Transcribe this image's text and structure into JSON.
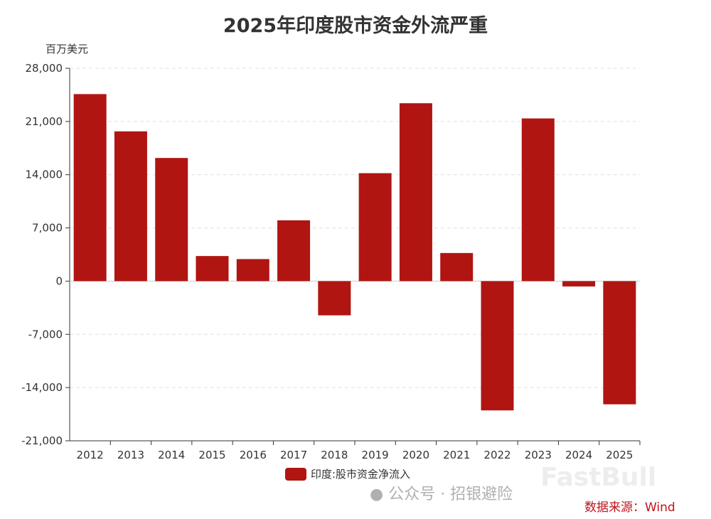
{
  "chart_data": {
    "type": "bar",
    "title": "2025年印度股市资金外流严重",
    "ylabel": "百万美元",
    "xlabel": "",
    "categories": [
      "2012",
      "2013",
      "2014",
      "2015",
      "2016",
      "2017",
      "2018",
      "2019",
      "2020",
      "2021",
      "2022",
      "2023",
      "2024",
      "2025"
    ],
    "series": [
      {
        "name": "印度:股市资金净流入",
        "values": [
          24600,
          19700,
          16200,
          3300,
          2900,
          8000,
          -4500,
          14200,
          23400,
          3700,
          -17000,
          21400,
          -700,
          -16200
        ]
      }
    ],
    "ylim": [
      -21000,
      28000
    ],
    "yticks": [
      -21000,
      -14000,
      -7000,
      0,
      7000,
      14000,
      21000,
      28000
    ],
    "ytick_labels": [
      "-21,000",
      "-14,000",
      "-7,000",
      "0",
      "7,000",
      "14,000",
      "21,000",
      "28,000"
    ],
    "grid": true,
    "legend_position": "bottom",
    "bar_color": "#b01512"
  },
  "source": "数据来源：Wind",
  "watermark": {
    "logo": "FastBull",
    "wechat": "公众号 · 招银避险"
  }
}
